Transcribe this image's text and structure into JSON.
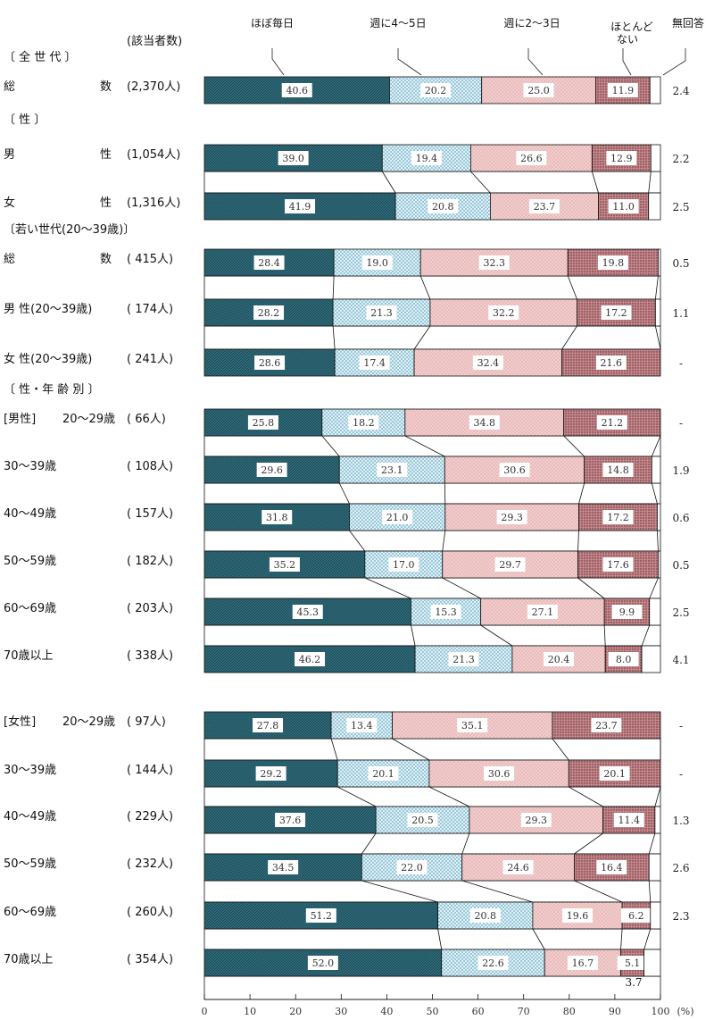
{
  "chart_data": {
    "type": "bar",
    "orientation": "horizontal",
    "stacked_percent": true,
    "legend": [
      "ほぼ毎日",
      "週に4～5日",
      "週に2～3日",
      "ほとんど\nない",
      "無回答"
    ],
    "count_header": "(該当者数)",
    "x_ticks": [
      0,
      10,
      20,
      30,
      40,
      50,
      60,
      70,
      80,
      90,
      100
    ],
    "x_unit": "(%)",
    "xlim": [
      0,
      100
    ],
    "colors": [
      "#2f6e7e",
      "#d7ecf3",
      "#f2c4c4",
      "#b36b70",
      "#ffffff"
    ],
    "headers": [
      {
        "key": "all",
        "text": "〔 全 世 代 〕"
      },
      {
        "key": "sex",
        "text": "〔 性 〕"
      },
      {
        "key": "young",
        "text": "〔若い世代(20～39歳)〕"
      },
      {
        "key": "sexage",
        "text": "〔 性・年 齢 別 〕"
      }
    ],
    "rows": [
      {
        "group": "",
        "label": "総 数",
        "count": "(2,370人)",
        "values": [
          40.6,
          20.2,
          25.0,
          11.9
        ],
        "na": "2.4"
      },
      {
        "group": "",
        "label": "男 性",
        "count": "(1,054人)",
        "values": [
          39.0,
          19.4,
          26.6,
          12.9
        ],
        "na": "2.2"
      },
      {
        "group": "",
        "label": "女 性",
        "count": "(1,316人)",
        "values": [
          41.9,
          20.8,
          23.7,
          11.0
        ],
        "na": "2.5"
      },
      {
        "group": "",
        "label": "総 数",
        "count": "( 415人)",
        "values": [
          28.4,
          19.0,
          32.3,
          19.8
        ],
        "na": "0.5"
      },
      {
        "group": "",
        "label": "男 性(20～39歳)",
        "count": "( 174人)",
        "values": [
          28.2,
          21.3,
          32.2,
          17.2
        ],
        "na": "1.1"
      },
      {
        "group": "",
        "label": "女 性(20～39歳)",
        "count": "( 241人)",
        "values": [
          28.6,
          17.4,
          32.4,
          21.6
        ],
        "na": "-"
      },
      {
        "group": "[男性]",
        "label": "20～29歳",
        "count": "( 66人)",
        "values": [
          25.8,
          18.2,
          34.8,
          21.2
        ],
        "na": "-"
      },
      {
        "group": "",
        "label": "30～39歳",
        "count": "( 108人)",
        "values": [
          29.6,
          23.1,
          30.6,
          14.8
        ],
        "na": "1.9"
      },
      {
        "group": "",
        "label": "40～49歳",
        "count": "( 157人)",
        "values": [
          31.8,
          21.0,
          29.3,
          17.2
        ],
        "na": "0.6"
      },
      {
        "group": "",
        "label": "50～59歳",
        "count": "( 182人)",
        "values": [
          35.2,
          17.0,
          29.7,
          17.6
        ],
        "na": "0.5"
      },
      {
        "group": "",
        "label": "60～69歳",
        "count": "( 203人)",
        "values": [
          45.3,
          15.3,
          27.1,
          9.9
        ],
        "na": "2.5"
      },
      {
        "group": "",
        "label": "70歳以上",
        "count": "( 338人)",
        "values": [
          46.2,
          21.3,
          20.4,
          8.0
        ],
        "na": "4.1"
      },
      {
        "group": "[女性]",
        "label": "20～29歳",
        "count": "( 97人)",
        "values": [
          27.8,
          13.4,
          35.1,
          23.7
        ],
        "na": "-"
      },
      {
        "group": "",
        "label": "30～39歳",
        "count": "( 144人)",
        "values": [
          29.2,
          20.1,
          30.6,
          20.1
        ],
        "na": "-"
      },
      {
        "group": "",
        "label": "40～49歳",
        "count": "( 229人)",
        "values": [
          37.6,
          20.5,
          29.3,
          11.4
        ],
        "na": "1.3"
      },
      {
        "group": "",
        "label": "50～59歳",
        "count": "( 232人)",
        "values": [
          34.5,
          22.0,
          24.6,
          16.4
        ],
        "na": "2.6"
      },
      {
        "group": "",
        "label": "60～69歳",
        "count": "( 260人)",
        "values": [
          51.2,
          20.8,
          19.6,
          6.2
        ],
        "na": "2.3"
      },
      {
        "group": "",
        "label": "70歳以上",
        "count": "( 354人)",
        "values": [
          52.0,
          22.6,
          16.7,
          5.1
        ],
        "na": "3.7"
      }
    ]
  }
}
